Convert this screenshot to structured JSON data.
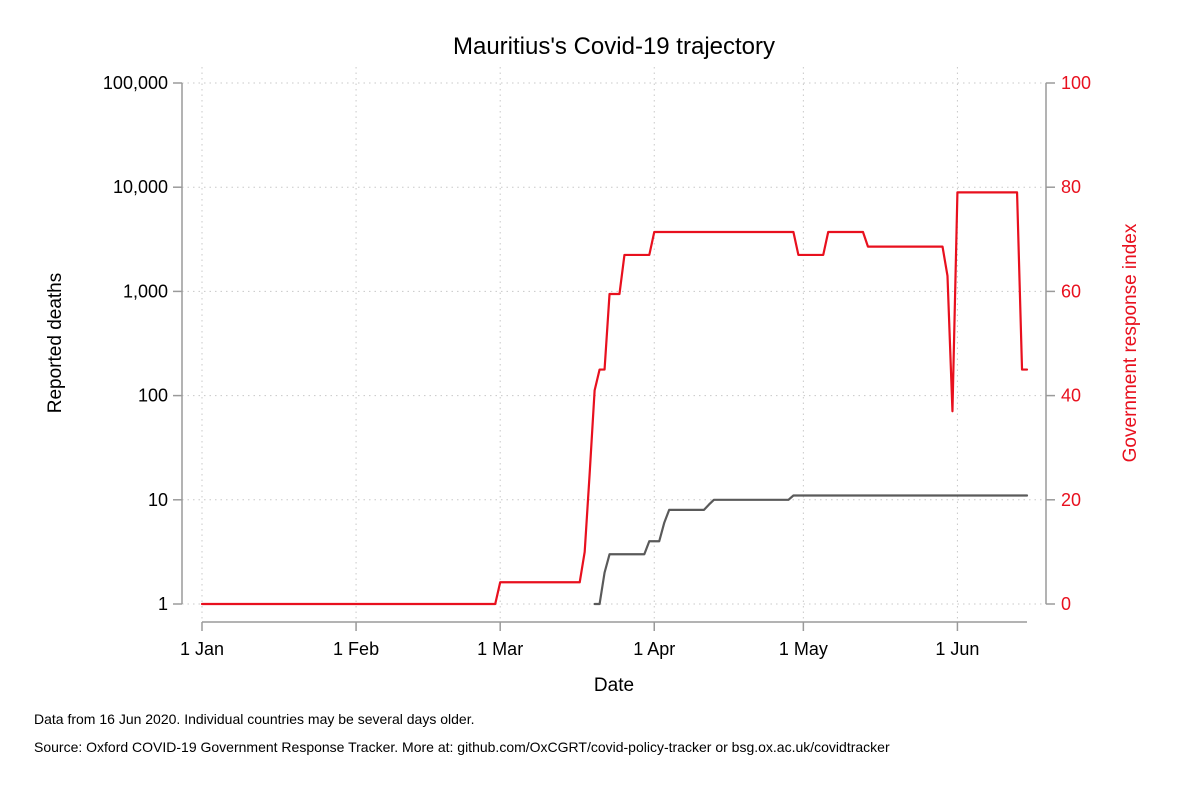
{
  "chart_data": {
    "type": "line",
    "title": "Mauritius's Covid-19 trajectory",
    "xlabel": "Date",
    "ylabel_left": "Reported deaths",
    "ylabel_right": "Government response index",
    "x_ticks": [
      "1 Jan",
      "1 Feb",
      "1 Mar",
      "1 Apr",
      "1 May",
      "1 Jun"
    ],
    "x_tick_dates": [
      "2020-01-01",
      "2020-02-01",
      "2020-03-01",
      "2020-04-01",
      "2020-05-01",
      "2020-06-01"
    ],
    "xlim": [
      "2020-01-01",
      "2020-06-15"
    ],
    "y_left": {
      "scale": "log",
      "lim": [
        1,
        100000
      ],
      "ticks": [
        1,
        10,
        100,
        1000,
        10000,
        100000
      ],
      "tick_labels": [
        "1",
        "10",
        "100",
        "1,000",
        "10,000",
        "100,000"
      ]
    },
    "y_right": {
      "scale": "linear",
      "lim": [
        0,
        100
      ],
      "ticks": [
        0,
        20,
        40,
        60,
        80,
        100
      ],
      "tick_labels": [
        "0",
        "20",
        "40",
        "60",
        "80",
        "100"
      ]
    },
    "grid": true,
    "series": [
      {
        "axis": "left",
        "color": "#5a5a5a",
        "points": [
          [
            "2020-03-20",
            1
          ],
          [
            "2020-03-21",
            1
          ],
          [
            "2020-03-22",
            2
          ],
          [
            "2020-03-23",
            3
          ],
          [
            "2020-03-30",
            3
          ],
          [
            "2020-03-31",
            4
          ],
          [
            "2020-04-02",
            4
          ],
          [
            "2020-04-03",
            6
          ],
          [
            "2020-04-04",
            8
          ],
          [
            "2020-04-11",
            8
          ],
          [
            "2020-04-12",
            9
          ],
          [
            "2020-04-13",
            10
          ],
          [
            "2020-04-28",
            10
          ],
          [
            "2020-04-29",
            11
          ],
          [
            "2020-06-15",
            11
          ]
        ]
      },
      {
        "axis": "right",
        "color": "#e8101e",
        "points": [
          [
            "2020-01-01",
            0
          ],
          [
            "2020-02-29",
            0
          ],
          [
            "2020-03-01",
            4.17
          ],
          [
            "2020-03-17",
            4.17
          ],
          [
            "2020-03-18",
            10
          ],
          [
            "2020-03-19",
            25
          ],
          [
            "2020-03-20",
            41
          ],
          [
            "2020-03-21",
            45
          ],
          [
            "2020-03-22",
            45
          ],
          [
            "2020-03-23",
            59.5
          ],
          [
            "2020-03-25",
            59.5
          ],
          [
            "2020-03-26",
            67
          ],
          [
            "2020-03-31",
            67
          ],
          [
            "2020-04-01",
            71.4
          ],
          [
            "2020-04-29",
            71.4
          ],
          [
            "2020-04-30",
            67
          ],
          [
            "2020-05-05",
            67
          ],
          [
            "2020-05-06",
            71.4
          ],
          [
            "2020-05-13",
            71.4
          ],
          [
            "2020-05-14",
            68.6
          ],
          [
            "2020-05-29",
            68.6
          ],
          [
            "2020-05-30",
            63
          ],
          [
            "2020-05-31",
            37
          ],
          [
            "2020-06-01",
            79
          ],
          [
            "2020-06-13",
            79
          ],
          [
            "2020-06-14",
            45
          ],
          [
            "2020-06-15",
            45
          ]
        ]
      }
    ]
  },
  "footer": {
    "note_1": "Data from 16 Jun 2020. Individual countries may be several days older.",
    "note_2": "Source: Oxford COVID-19 Government Response Tracker. More at: github.com/OxCGRT/covid-policy-tracker or bsg.ox.ac.uk/covidtracker"
  },
  "colors": {
    "deaths_line": "#5a5a5a",
    "response_line": "#e8101e",
    "right_axis_text": "#e8101e",
    "grid": "#c8c8c8",
    "axis": "#9a9a9a"
  }
}
